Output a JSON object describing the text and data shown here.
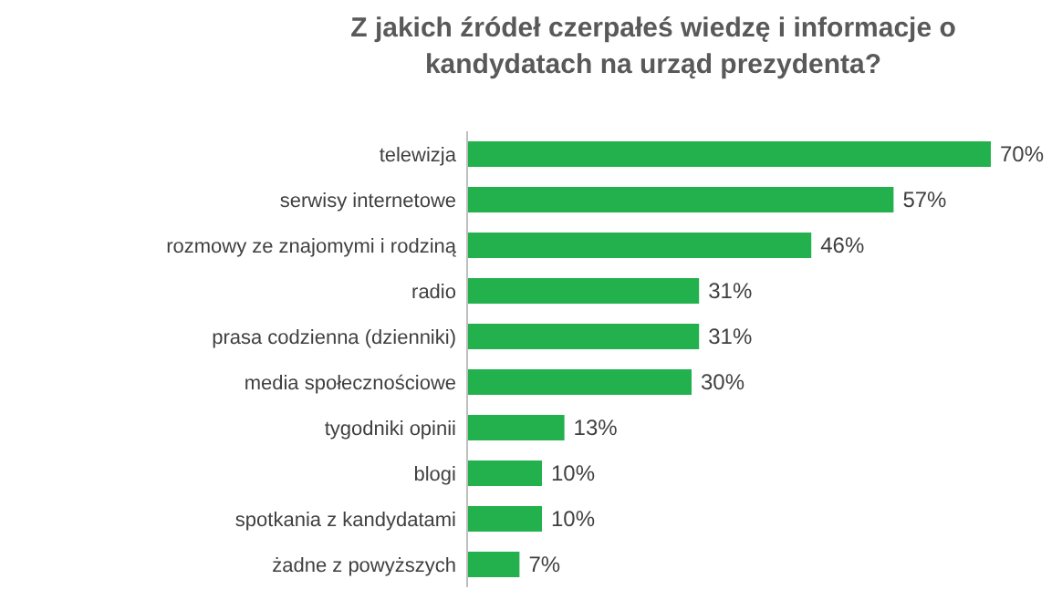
{
  "chart_data": {
    "type": "bar",
    "orientation": "horizontal",
    "title": "Z jakich źródeł czerpałeś wiedzę i informacje o\nkandydatach na urząd prezydenta?",
    "categories": [
      "telewizja",
      "serwisy internetowe",
      "rozmowy ze znajomymi i rodziną",
      "radio",
      "prasa codzienna (dzienniki)",
      "media społecznościowe",
      "tygodniki opinii",
      "blogi",
      "spotkania z kandydatami",
      "żadne z powyższych"
    ],
    "values": [
      70,
      57,
      46,
      31,
      31,
      30,
      13,
      10,
      10,
      7
    ],
    "value_labels": [
      "70%",
      "57%",
      "46%",
      "31%",
      "31%",
      "30%",
      "13%",
      "10%",
      "10%",
      "7%"
    ],
    "color": "#22b14c"
  }
}
